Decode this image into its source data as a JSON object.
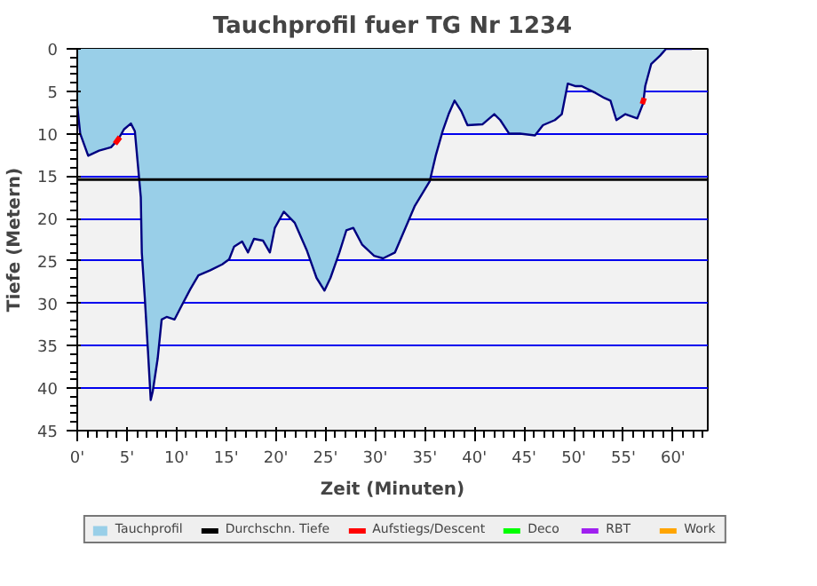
{
  "chart_data": {
    "type": "area",
    "title": "Tauchprofil fuer TG Nr 1234",
    "xlabel": "Zeit (Minuten)",
    "ylabel": "Tiefe (Metern)",
    "xlim": [
      0,
      63.5
    ],
    "ylim": [
      45,
      0
    ],
    "xticks": [
      {
        "value": 0,
        "label": "0'"
      },
      {
        "value": 5,
        "label": "5'"
      },
      {
        "value": 10,
        "label": "10'"
      },
      {
        "value": 15,
        "label": "15'"
      },
      {
        "value": 20,
        "label": "20'"
      },
      {
        "value": 25,
        "label": "25'"
      },
      {
        "value": 30,
        "label": "30'"
      },
      {
        "value": 35,
        "label": "35'"
      },
      {
        "value": 40,
        "label": "40'"
      },
      {
        "value": 45,
        "label": "45'"
      },
      {
        "value": 50,
        "label": "50'"
      },
      {
        "value": 55,
        "label": "55'"
      },
      {
        "value": 60,
        "label": "60'"
      }
    ],
    "yticks": [
      0,
      5,
      10,
      15,
      20,
      25,
      30,
      35,
      40,
      45
    ],
    "grid": "y",
    "legend": "bottom",
    "ref_lines": [
      {
        "axis": "y",
        "value": 15.4,
        "label": "Durchschn. Tiefe",
        "color": "#000000"
      }
    ],
    "series": [
      {
        "name": "Tauchprofil",
        "color": "#99cfe8",
        "x": [
          0,
          0.3,
          1.1,
          2.2,
          3.4,
          4.1,
          4.7,
          5.4,
          5.8,
          6.1,
          6.4,
          6.5,
          6.8,
          7.1,
          7.4,
          7.6,
          8.1,
          8.5,
          9.0,
          9.8,
          10.5,
          11.4,
          12.2,
          13.4,
          14.6,
          15.3,
          15.8,
          16.6,
          17.2,
          17.8,
          18.7,
          19.4,
          19.9,
          20.8,
          21.9,
          23.1,
          24.1,
          24.9,
          25.5,
          26.4,
          27.1,
          27.8,
          28.7,
          29.9,
          30.8,
          32.0,
          32.8,
          34.0,
          35.5,
          36.1,
          36.8,
          37.4,
          38.0,
          38.7,
          39.3,
          40.8,
          42.0,
          42.6,
          43.5,
          44.6,
          46.1,
          46.9,
          48.1,
          48.8,
          49.4,
          50.2,
          50.8,
          51.5,
          52.2,
          53.1,
          53.7,
          54.3,
          55.2,
          56.4,
          57.0,
          57.2,
          57.8,
          58.7,
          59.3,
          61.9
        ],
        "values": [
          6.7,
          10,
          12.6,
          12,
          11.6,
          10.7,
          9.5,
          8.8,
          9.7,
          13.6,
          17.5,
          24,
          29.3,
          35.2,
          41.4,
          40.4,
          36.5,
          31.9,
          31.6,
          31.9,
          30.3,
          28.3,
          26.7,
          26.1,
          25.4,
          24.8,
          23.3,
          22.7,
          24,
          22.4,
          22.6,
          24,
          21.1,
          19.2,
          20.5,
          23.7,
          27,
          28.5,
          27,
          24,
          21.4,
          21.1,
          23.1,
          24.4,
          24.7,
          24,
          21.8,
          18.5,
          15.6,
          12.6,
          9.7,
          7.7,
          6.1,
          7.4,
          9,
          8.9,
          7.7,
          8.4,
          10,
          10,
          10.2,
          9,
          8.4,
          7.7,
          4.1,
          4.4,
          4.4,
          4.8,
          5.2,
          5.8,
          6.1,
          8.4,
          7.7,
          8.2,
          6.4,
          4.4,
          1.8,
          0.8,
          0,
          0
        ]
      },
      {
        "name": "Aufstiegs/Descent",
        "type": "line",
        "color": "#ff0000",
        "x": [
          3.8,
          4.3,
          4.4,
          56.9,
          57.1
        ],
        "values": [
          11.2,
          10.4,
          null,
          6.5,
          5.8
        ]
      },
      {
        "name": "Deco",
        "type": "line",
        "color": "#00ff00"
      },
      {
        "name": "RBT",
        "type": "line",
        "color": "#a020f0"
      },
      {
        "name": "Work",
        "type": "line",
        "color": "#ffa500"
      }
    ]
  }
}
